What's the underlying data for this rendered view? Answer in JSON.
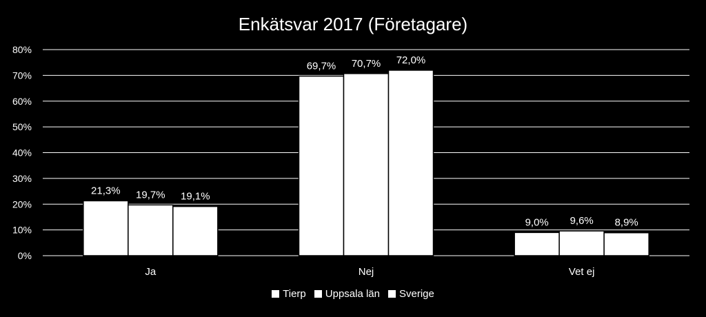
{
  "chart_data": {
    "type": "bar",
    "title": "Enkätsvar 2017 (Företagare)",
    "categories": [
      "Ja",
      "Nej",
      "Vet ej"
    ],
    "series": [
      {
        "name": "Tierp",
        "values": [
          21.3,
          69.7,
          9.0
        ],
        "labels": [
          "21,3%",
          "69,7%",
          "9,0%"
        ]
      },
      {
        "name": "Uppsala län",
        "values": [
          19.7,
          70.7,
          9.6
        ],
        "labels": [
          "19,7%",
          "70,7%",
          "9,6%"
        ]
      },
      {
        "name": "Sverige",
        "values": [
          19.1,
          72.0,
          8.9
        ],
        "labels": [
          "19,1%",
          "72,0%",
          "8,9%"
        ]
      }
    ],
    "yticks": [
      "0%",
      "10%",
      "20%",
      "30%",
      "40%",
      "50%",
      "60%",
      "70%",
      "80%"
    ],
    "ylim": [
      0,
      80
    ],
    "grid": true,
    "legend_position": "bottom",
    "colors": {
      "background": "#000000",
      "bars": "#ffffff",
      "bar_edge": "#000000",
      "gridline": "#ffffff",
      "text": "#ffffff"
    }
  }
}
